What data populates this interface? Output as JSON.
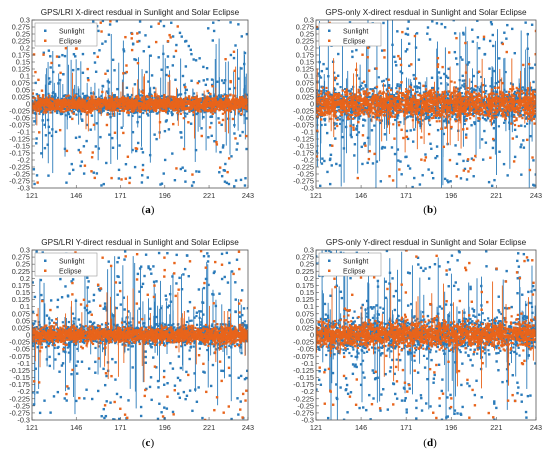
{
  "colors": {
    "sunlight": "#2b7bba",
    "eclipse": "#e8641b",
    "axis": "#555555"
  },
  "chart_data": [
    {
      "type": "scatter",
      "panel": "(a)",
      "title": "GPS/LRI X-direct resdual in Sunlight and Solar Eclipse",
      "xlim": [
        121,
        243
      ],
      "ylim": [
        -0.3,
        0.3
      ],
      "xticks": [
        121,
        146,
        171,
        196,
        221,
        243
      ],
      "yticks": [
        0.3,
        0.275,
        0.25,
        0.225,
        0.2,
        0.175,
        0.15,
        0.125,
        0.1,
        0.075,
        0.05,
        0.025,
        0,
        -0.025,
        -0.05,
        -0.075,
        -0.1,
        -0.125,
        -0.15,
        -0.175,
        -0.2,
        -0.225,
        -0.25,
        -0.275,
        -0.3
      ],
      "xticklabels": [
        "121",
        "146",
        "171",
        "196",
        "221",
        "243"
      ],
      "yticklabels": [
        "0.3",
        "0.275",
        "0.25",
        "0.225",
        "0.2",
        "0.175",
        "0.15",
        "0.125",
        "0.1",
        "0.075",
        "0.05",
        "0.025",
        "0",
        "-0.025",
        "-0.05",
        "-0.075",
        "-0.1",
        "-0.125",
        "-0.15",
        "-0.175",
        "-0.2",
        "-0.225",
        "-0.25",
        "-0.275",
        "-0.3"
      ],
      "legend": [
        "Sunlight",
        "Eclipse"
      ],
      "legend_position": "top-left",
      "grid": false,
      "series": [
        {
          "name": "Sunlight",
          "core_amplitude": 0.03,
          "spread": 0.09
        },
        {
          "name": "Eclipse",
          "core_amplitude": 0.022,
          "spread": 0.05
        }
      ]
    },
    {
      "type": "scatter",
      "panel": "(b)",
      "title": "GPS-only X-direct resdual in Sunlight and Solar Eclipse",
      "xlim": [
        121,
        243
      ],
      "ylim": [
        -0.3,
        0.3
      ],
      "xticks": [
        121,
        146,
        171,
        196,
        221,
        243
      ],
      "yticks": [
        0.3,
        0.275,
        0.25,
        0.225,
        0.2,
        0.175,
        0.15,
        0.125,
        0.1,
        0.075,
        0.05,
        0.025,
        0,
        -0.025,
        -0.05,
        -0.075,
        -0.1,
        -0.125,
        -0.15,
        -0.175,
        -0.2,
        -0.225,
        -0.25,
        -0.275,
        -0.3
      ],
      "xticklabels": [
        "121",
        "146",
        "171",
        "196",
        "221",
        "243"
      ],
      "yticklabels": [
        "0.3",
        "0.275",
        "0.25",
        "0.225",
        "0.2",
        "0.175",
        "0.15",
        "0.125",
        "0.1",
        "0.075",
        "0.05",
        "0.025",
        "0",
        "-0.025",
        "-0.05",
        "-0.075",
        "-0.1",
        "-0.125",
        "-0.15",
        "-0.175",
        "-0.2",
        "-0.225",
        "-0.25",
        "-0.275",
        "-0.3"
      ],
      "legend": [
        "Sunlight",
        "Eclipse"
      ],
      "legend_position": "top-left",
      "grid": false,
      "series": [
        {
          "name": "Sunlight",
          "core_amplitude": 0.06,
          "spread": 0.12
        },
        {
          "name": "Eclipse",
          "core_amplitude": 0.045,
          "spread": 0.07
        }
      ]
    },
    {
      "type": "scatter",
      "panel": "(c)",
      "title": "GPS/LRI Y-direct resdual in Sunlight and Solar Eclipse",
      "xlim": [
        121,
        243
      ],
      "ylim": [
        -0.3,
        0.3
      ],
      "xticks": [
        121,
        146,
        171,
        196,
        221,
        243
      ],
      "yticks": [
        0.3,
        0.275,
        0.25,
        0.225,
        0.2,
        0.175,
        0.15,
        0.125,
        0.1,
        0.075,
        0.05,
        0.025,
        0,
        -0.025,
        -0.05,
        -0.075,
        -0.1,
        -0.125,
        -0.15,
        -0.175,
        -0.2,
        -0.225,
        -0.25,
        -0.275,
        -0.3
      ],
      "xticklabels": [
        "121",
        "146",
        "171",
        "196",
        "221",
        "243"
      ],
      "yticklabels": [
        "0.3",
        "0.275",
        "0.25",
        "0.225",
        "0.2",
        "0.175",
        "0.15",
        "0.125",
        "0.1",
        "0.075",
        "0.05",
        "0.025",
        "0",
        "-0.025",
        "-0.05",
        "-0.075",
        "-0.1",
        "-0.125",
        "-0.15",
        "-0.175",
        "-0.2",
        "-0.225",
        "-0.25",
        "-0.275",
        "-0.3"
      ],
      "legend": [
        "Sunlight",
        "Eclipse"
      ],
      "legend_position": "top-left",
      "grid": false,
      "series": [
        {
          "name": "Sunlight",
          "core_amplitude": 0.035,
          "spread": 0.1
        },
        {
          "name": "Eclipse",
          "core_amplitude": 0.025,
          "spread": 0.06
        }
      ]
    },
    {
      "type": "scatter",
      "panel": "(d)",
      "title": "GPS-only Y-direct resdual in Sunlight and Solar Eclipse",
      "xlim": [
        121,
        243
      ],
      "ylim": [
        -0.3,
        0.3
      ],
      "xticks": [
        121,
        146,
        171,
        196,
        221,
        243
      ],
      "yticks": [
        0.3,
        0.275,
        0.25,
        0.225,
        0.2,
        0.175,
        0.15,
        0.125,
        0.1,
        0.075,
        0.05,
        0.025,
        0,
        -0.025,
        -0.05,
        -0.075,
        -0.1,
        -0.125,
        -0.15,
        -0.175,
        -0.2,
        -0.225,
        -0.25,
        -0.275,
        -0.3
      ],
      "xticklabels": [
        "121",
        "146",
        "171",
        "196",
        "221",
        "243"
      ],
      "yticklabels": [
        "0.3",
        "0.275",
        "0.25",
        "0.225",
        "0.2",
        "0.175",
        "0.15",
        "0.125",
        "0.1",
        "0.075",
        "0.05",
        "0.025",
        "0",
        "-0.025",
        "-0.05",
        "-0.075",
        "-0.1",
        "-0.125",
        "-0.15",
        "-0.175",
        "-0.2",
        "-0.225",
        "-0.25",
        "-0.275",
        "-0.3"
      ],
      "legend": [
        "Sunlight",
        "Eclipse"
      ],
      "legend_position": "top-left",
      "grid": false,
      "series": [
        {
          "name": "Sunlight",
          "core_amplitude": 0.055,
          "spread": 0.12
        },
        {
          "name": "Eclipse",
          "core_amplitude": 0.04,
          "spread": 0.07
        }
      ]
    }
  ]
}
